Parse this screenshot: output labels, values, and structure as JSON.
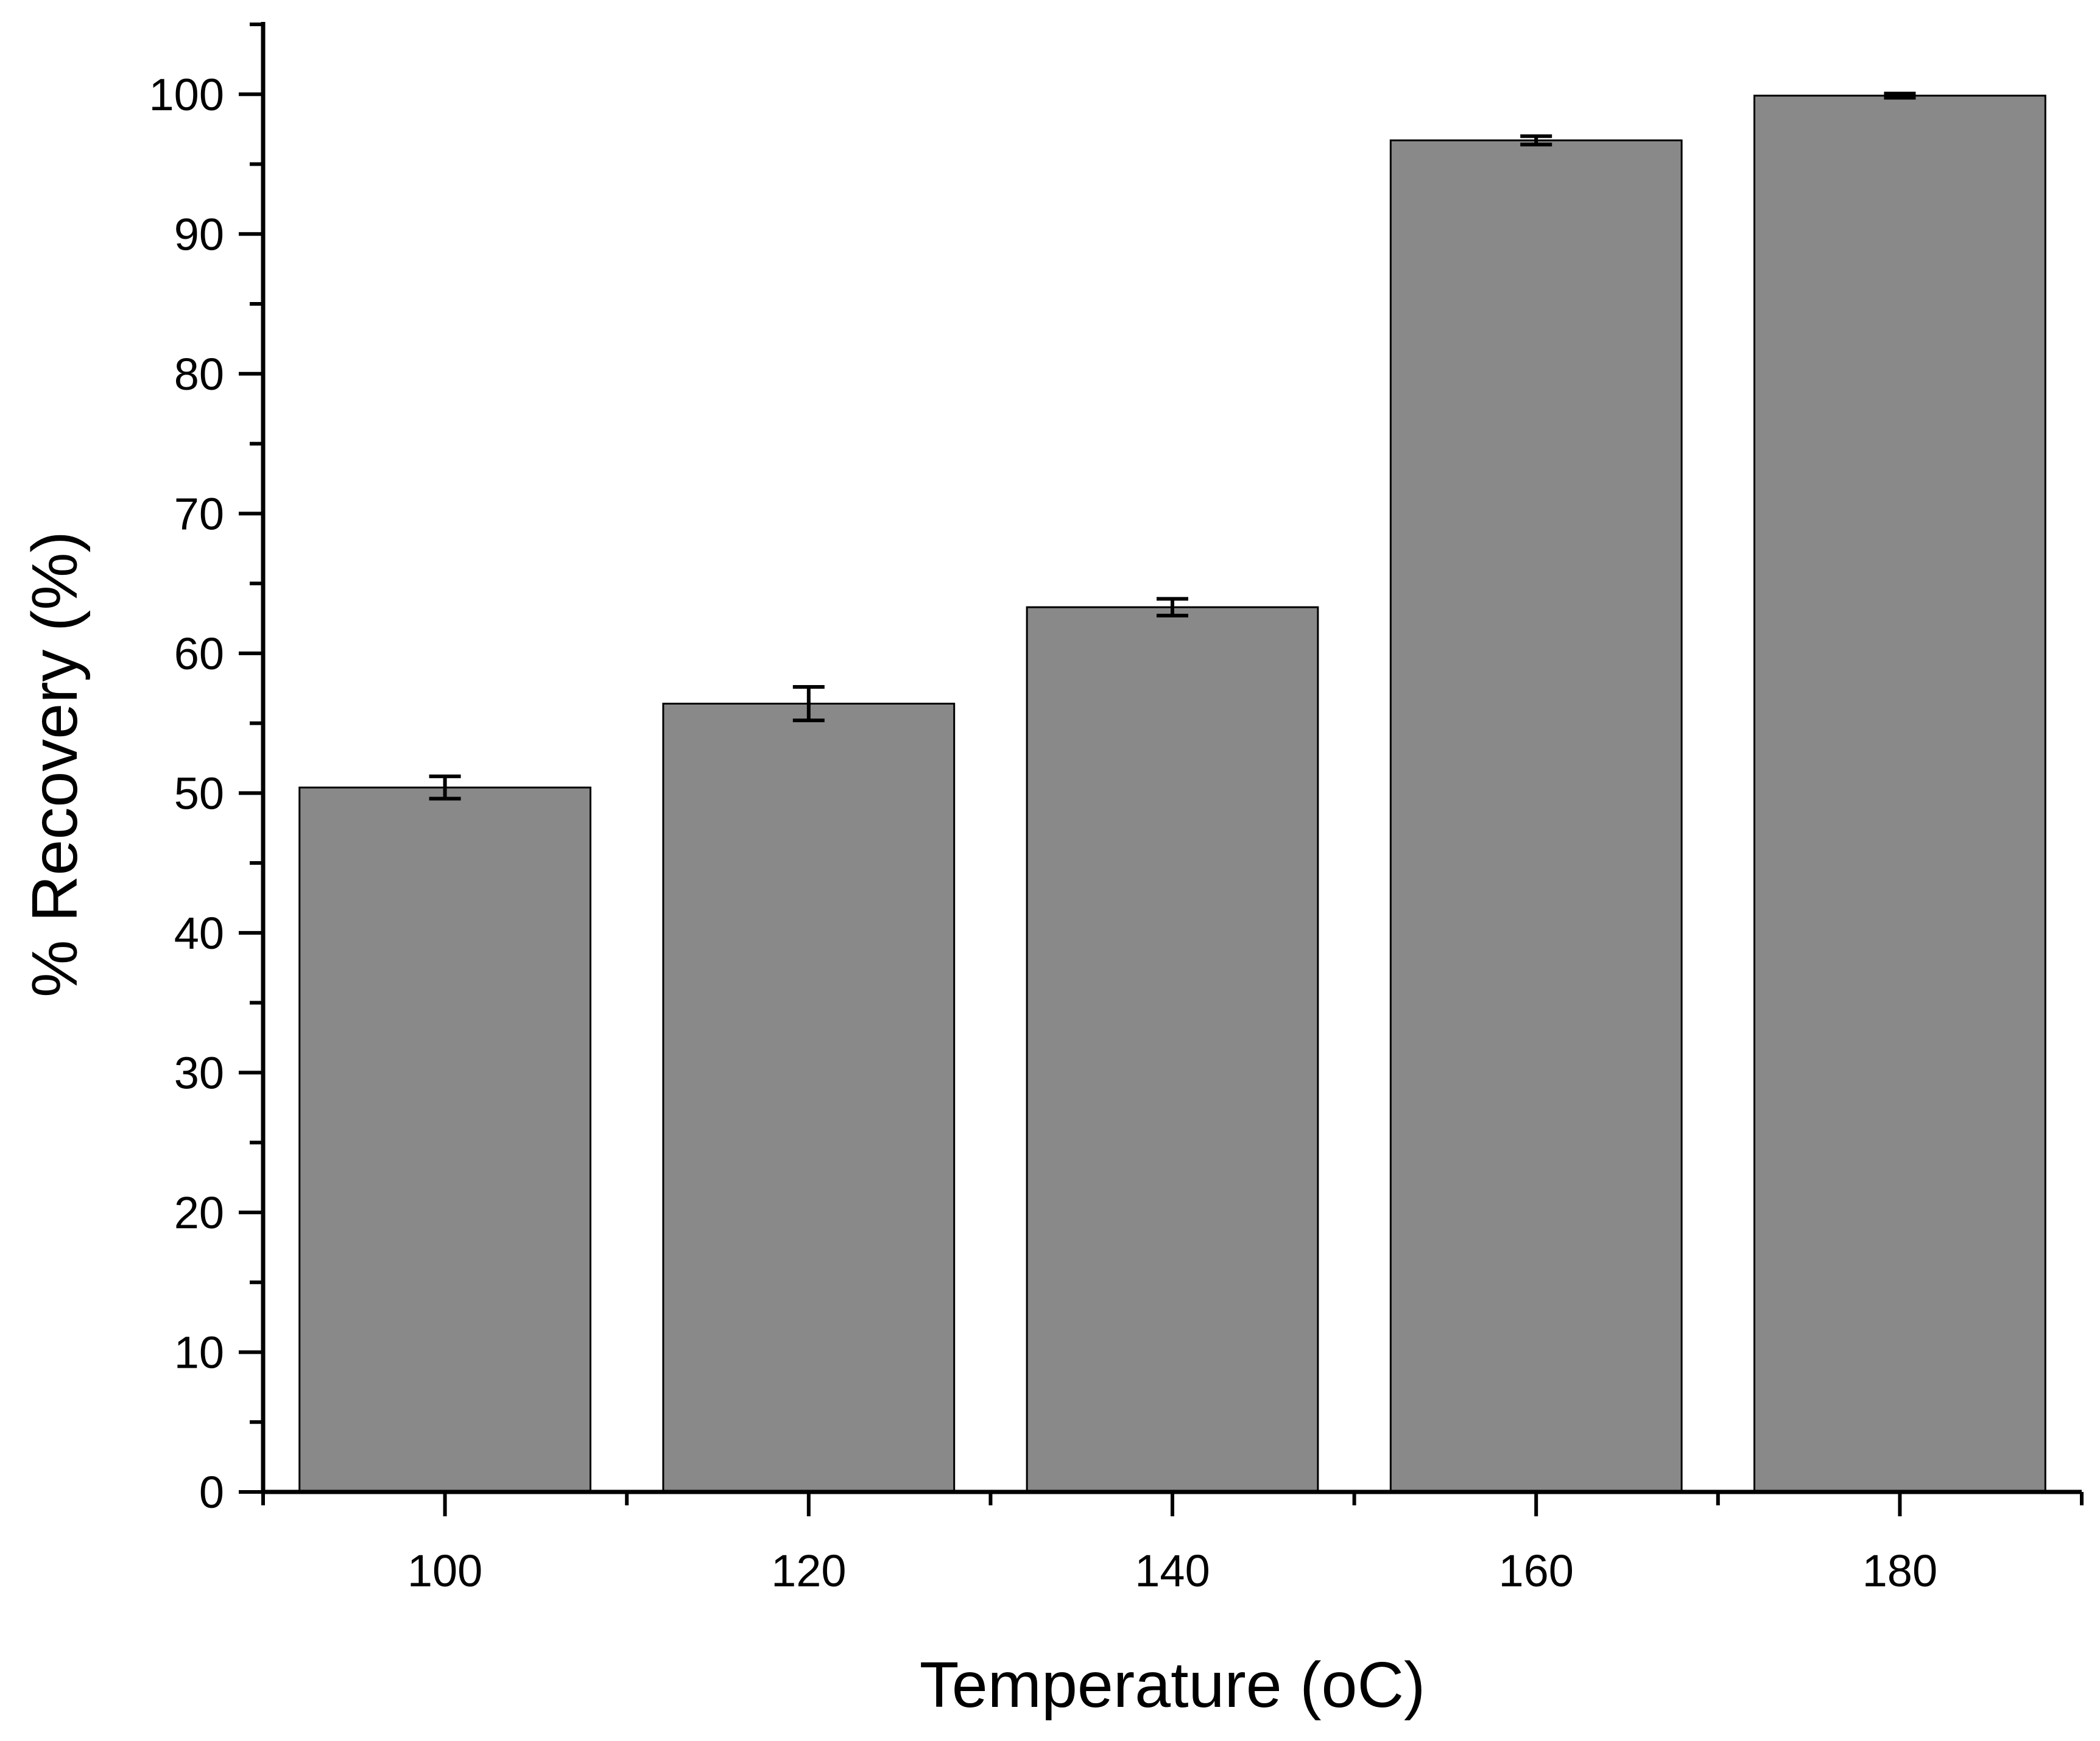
{
  "chart_data": {
    "type": "bar",
    "title": "",
    "xlabel": "Temperature (oC)",
    "ylabel": "% Recovery (%)",
    "categories": [
      "100",
      "120",
      "140",
      "160",
      "180"
    ],
    "values": [
      50.4,
      56.4,
      63.3,
      96.7,
      99.9
    ],
    "errors": [
      0.8,
      1.2,
      0.6,
      0.3,
      0.15
    ],
    "ylim": [
      0,
      105
    ],
    "yticks": [
      "0",
      "10",
      "20",
      "30",
      "40",
      "50",
      "60",
      "70",
      "80",
      "90",
      "100"
    ],
    "grid": false,
    "legend": "none",
    "bar_color": "#898989",
    "edge_color": "#000000"
  }
}
